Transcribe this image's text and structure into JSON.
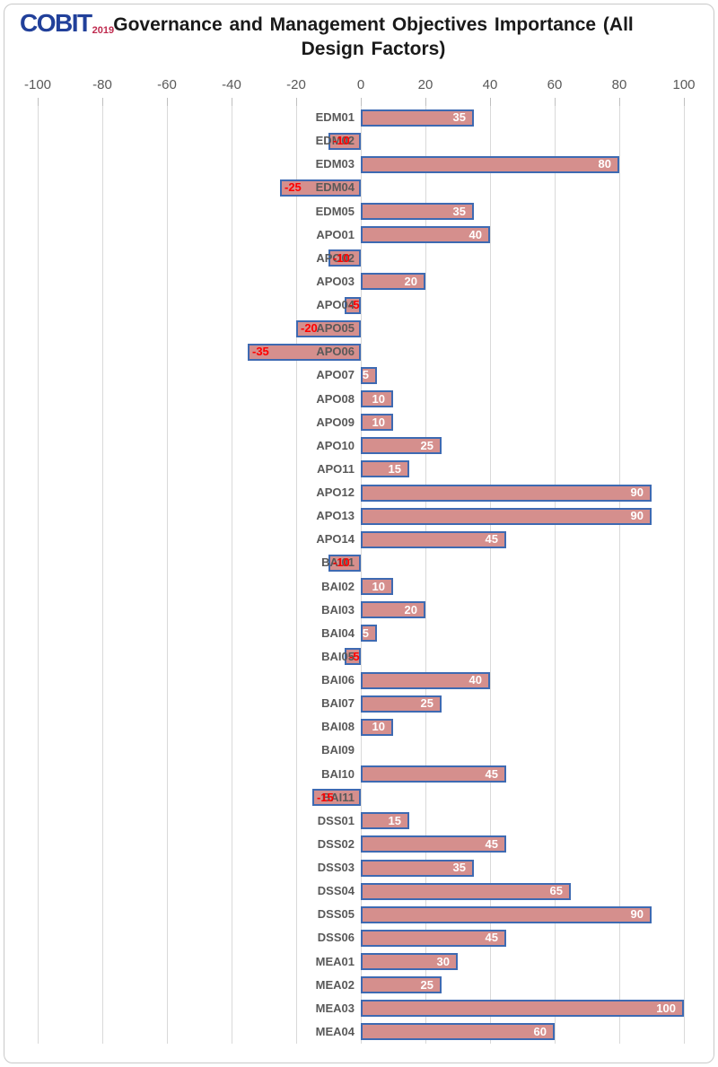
{
  "logo": {
    "brand": "COBIT",
    "year": "2019",
    "brand_color": "#21409A",
    "year_color": "#BF2A4E"
  },
  "chart_data": {
    "type": "bar",
    "orientation": "horizontal",
    "title": "Governance and Management Objectives Importance (All Design Factors)",
    "xlabel": "",
    "ylabel": "",
    "xlim": [
      -100,
      100
    ],
    "x_ticks": [
      -100,
      -80,
      -60,
      -40,
      -20,
      0,
      20,
      40,
      60,
      80,
      100
    ],
    "grid": true,
    "legend": "none",
    "categories": [
      "EDM01",
      "EDM02",
      "EDM03",
      "EDM04",
      "EDM05",
      "APO01",
      "APO02",
      "APO03",
      "APO04",
      "APO05",
      "APO06",
      "APO07",
      "APO08",
      "APO09",
      "APO10",
      "APO11",
      "APO12",
      "APO13",
      "APO14",
      "BAI01",
      "BAI02",
      "BAI03",
      "BAI04",
      "BAI05",
      "BAI06",
      "BAI07",
      "BAI08",
      "BAI09",
      "BAI10",
      "BAI11",
      "DSS01",
      "DSS02",
      "DSS03",
      "DSS04",
      "DSS05",
      "DSS06",
      "MEA01",
      "MEA02",
      "MEA03",
      "MEA04"
    ],
    "values": [
      35,
      -10,
      80,
      -25,
      35,
      40,
      -10,
      20,
      -5,
      -20,
      -35,
      5,
      10,
      10,
      25,
      15,
      90,
      90,
      45,
      -10,
      10,
      20,
      5,
      -5,
      40,
      25,
      10,
      0,
      45,
      -15,
      15,
      45,
      35,
      65,
      90,
      45,
      30,
      25,
      100,
      60
    ],
    "colors": {
      "bar_fill": "#D58F8D",
      "bar_border": "#3E6AB2",
      "positive_value_label": "#FFFFFF",
      "negative_value_label": "#FF0000",
      "gridline": "#D9D9D9",
      "axis_text": "#595959",
      "category_text": "#595959",
      "title_text": "#1A1A1A"
    }
  }
}
